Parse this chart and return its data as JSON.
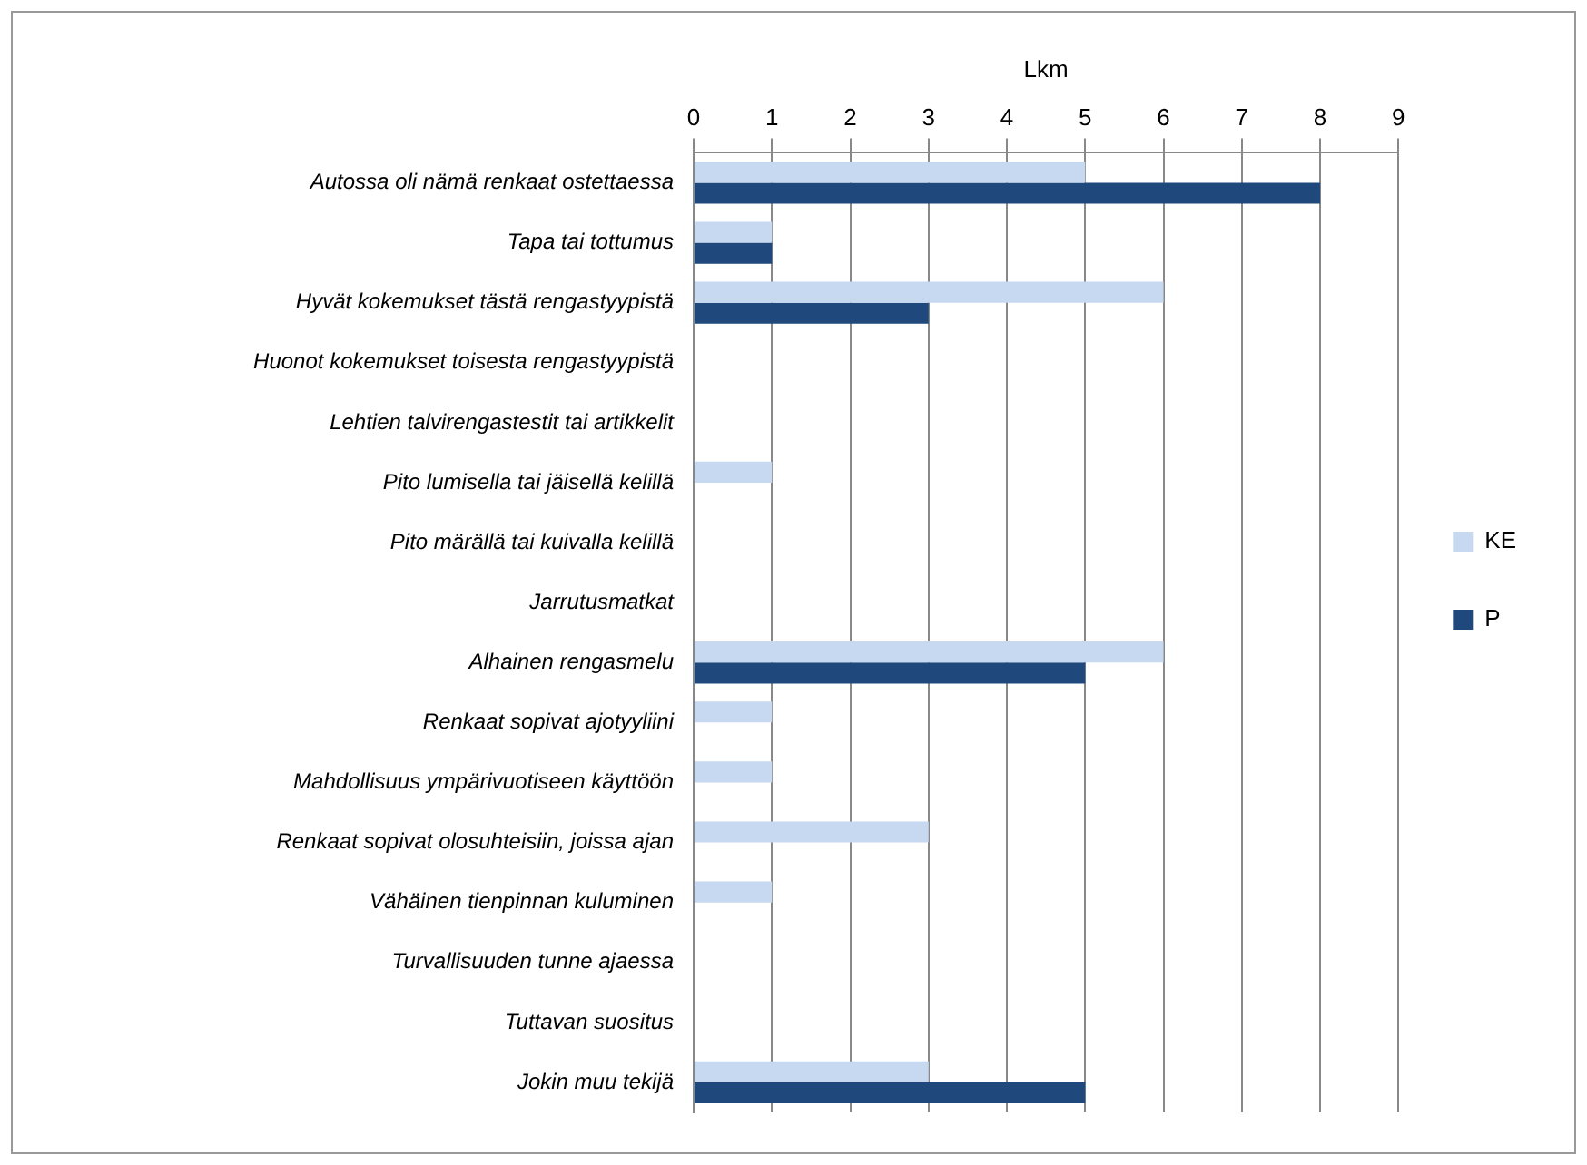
{
  "chart_data": {
    "type": "bar",
    "orientation": "horizontal",
    "xlabel": "Lkm",
    "categories": [
      "Autossa oli nämä renkaat ostettaessa",
      "Tapa tai tottumus",
      "Hyvät kokemukset tästä rengastyypistä",
      "Huonot kokemukset toisesta rengastyypistä",
      "Lehtien talvirengastestit tai artikkelit",
      "Pito lumisella tai jäisellä kelillä",
      "Pito märällä tai kuivalla kelillä",
      "Jarrutusmatkat",
      "Alhainen rengasmelu",
      "Renkaat sopivat ajotyyliini",
      "Mahdollisuus ympärivuotiseen käyttöön",
      "Renkaat sopivat olosuhteisiin, joissa ajan",
      "Vähäinen tienpinnan kuluminen",
      "Turvallisuuden tunne ajaessa",
      "Tuttavan suositus",
      "Jokin muu tekijä"
    ],
    "series": [
      {
        "name": "KE",
        "color": "#c6d9f1",
        "values": [
          5,
          1,
          6,
          0,
          0,
          1,
          0,
          0,
          6,
          1,
          1,
          3,
          1,
          0,
          0,
          3
        ]
      },
      {
        "name": "P",
        "color": "#1f497d",
        "values": [
          8,
          1,
          3,
          0,
          0,
          0,
          0,
          0,
          5,
          0,
          0,
          0,
          0,
          0,
          0,
          5
        ]
      }
    ],
    "xlim": [
      0,
      9
    ],
    "xticks": [
      0,
      1,
      2,
      3,
      4,
      5,
      6,
      7,
      8,
      9
    ],
    "grid": "x",
    "legend": "right"
  }
}
